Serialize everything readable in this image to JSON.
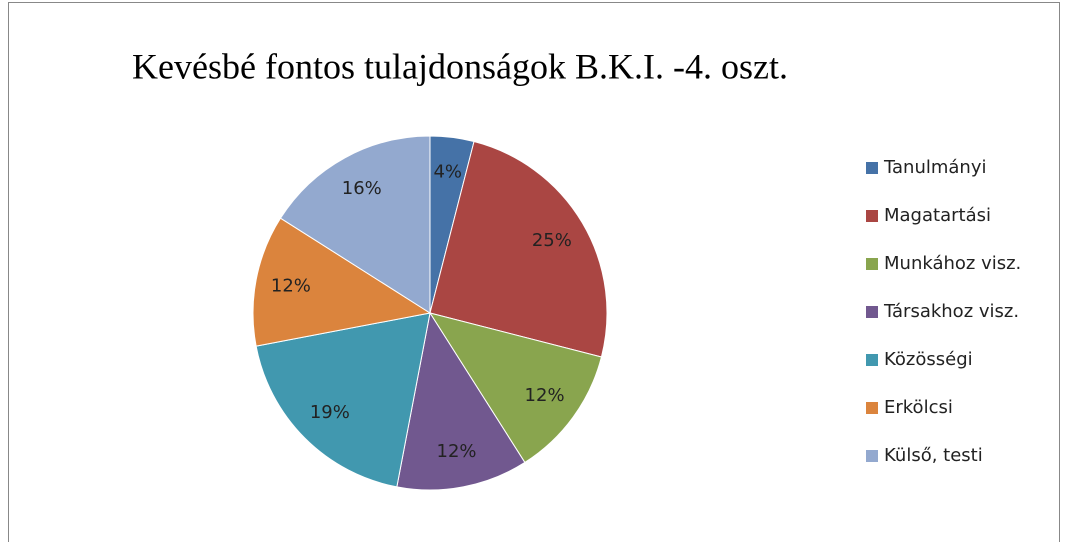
{
  "chart_data": {
    "type": "pie",
    "title": "Kevésbé fontos tulajdonságok B.K.I. -4. oszt.",
    "categories": [
      "Tanulmányi",
      "Magatartási",
      "Munkához visz.",
      "Társakhoz visz.",
      "Közösségi",
      "Erkölcsi",
      "Külső, testi"
    ],
    "values": [
      4,
      25,
      12,
      12,
      19,
      12,
      16
    ],
    "value_labels": [
      "4%",
      "25%",
      "12%",
      "12%",
      "19%",
      "12%",
      "16%"
    ],
    "colors": [
      "#4572a7",
      "#aa4643",
      "#89a54e",
      "#71588f",
      "#4198af",
      "#db843d",
      "#93a9cf"
    ],
    "legend": "right"
  }
}
